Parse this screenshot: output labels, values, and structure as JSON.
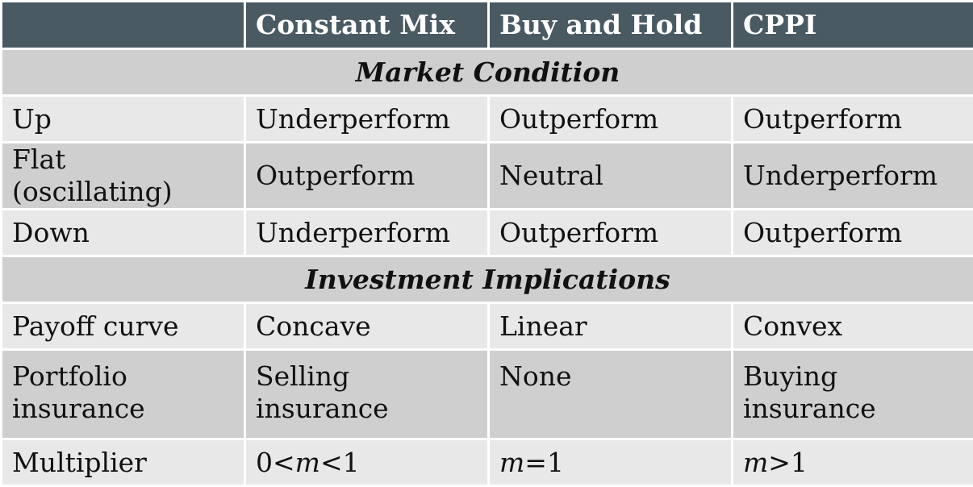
{
  "header": [
    "",
    "Constant Mix",
    "Buy and Hold",
    "CPPI"
  ],
  "sections": [
    {
      "title": "Market Condition",
      "rows": [
        [
          "Up",
          "Underperform",
          "Outperform",
          "Outperform"
        ],
        [
          "Flat (oscillating)",
          "Outperform",
          "Neutral",
          "Underperform"
        ],
        [
          "Down",
          "Underperform",
          "Outperform",
          "Outperform"
        ]
      ]
    },
    {
      "title": "Investment Implications",
      "rows": [
        [
          "Payoff curve",
          "Concave",
          "Linear",
          "Convex"
        ],
        [
          "Portfolio insurance",
          "Selling insurance",
          "None",
          "Buying insurance"
        ]
      ]
    }
  ],
  "multiplier": {
    "label": "Multiplier",
    "constant_mix": {
      "pre": "0<",
      "var": "m",
      "post": "<1"
    },
    "buy_and_hold": {
      "pre": "",
      "var": "m",
      "post": "=1"
    },
    "cppi": {
      "pre": "",
      "var": "m",
      "post": ">1"
    }
  },
  "colors": {
    "header_bg": "#4a5a62",
    "row_dark": "#cfcfcf",
    "row_light": "#e8e8e8"
  }
}
